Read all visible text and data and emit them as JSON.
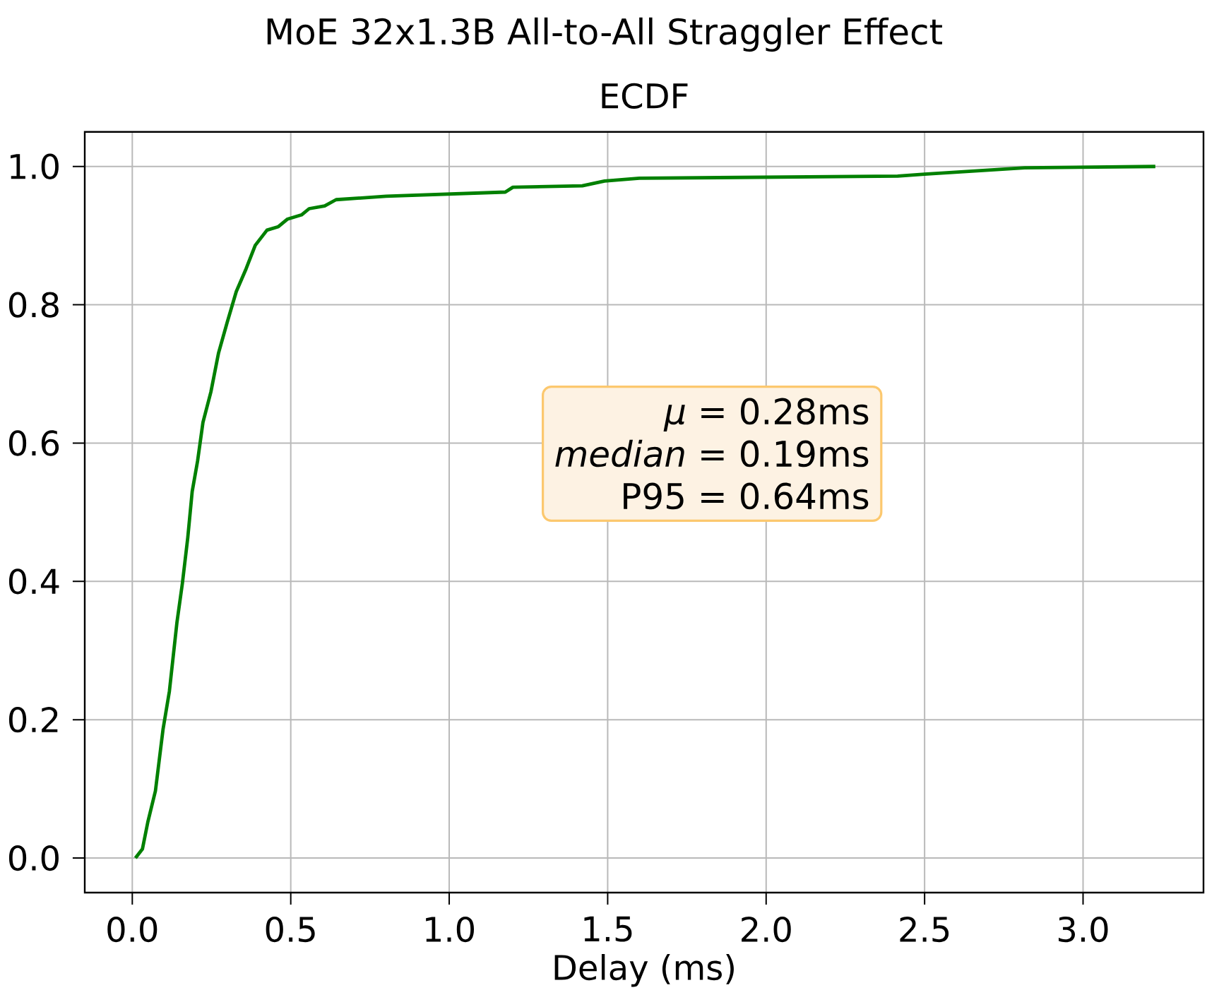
{
  "chart_data": {
    "type": "line",
    "title": "MoE 32x1.3B All-to-All Straggler Effect",
    "subtitle": "ECDF",
    "xlabel": "Delay (ms)",
    "x": [
      0.01,
      0.032,
      0.049,
      0.073,
      0.097,
      0.117,
      0.141,
      0.158,
      0.175,
      0.189,
      0.206,
      0.223,
      0.248,
      0.272,
      0.299,
      0.328,
      0.359,
      0.388,
      0.425,
      0.461,
      0.49,
      0.534,
      0.558,
      0.607,
      0.643,
      0.801,
      1.177,
      1.201,
      1.42,
      1.49,
      1.6,
      2.415,
      2.5,
      2.816,
      3.228
    ],
    "values": [
      0.0,
      0.013,
      0.052,
      0.097,
      0.186,
      0.241,
      0.341,
      0.397,
      0.463,
      0.53,
      0.574,
      0.63,
      0.674,
      0.73,
      0.774,
      0.819,
      0.852,
      0.886,
      0.908,
      0.913,
      0.924,
      0.93,
      0.939,
      0.943,
      0.952,
      0.957,
      0.963,
      0.97,
      0.972,
      0.979,
      0.983,
      0.986,
      0.989,
      0.998,
      1.0
    ],
    "color": "#008000",
    "xlim": [
      -0.15,
      3.38
    ],
    "ylim": [
      -0.05,
      1.05
    ],
    "xticks": [
      {
        "value": 0,
        "label": "0.0"
      },
      0.5,
      {
        "value": 1,
        "label": "1.0"
      },
      1.5,
      {
        "value": 2,
        "label": "2.0"
      },
      2.5,
      {
        "value": 3,
        "label": "3.0"
      }
    ],
    "yticks": [
      {
        "value": 0,
        "label": "0.0"
      },
      0.2,
      0.4,
      0.6,
      0.8,
      {
        "value": 1,
        "label": "1.0"
      }
    ],
    "grid": true,
    "annotations": [
      "*μ* = 0.28ms",
      "*median* = 0.19ms",
      "P95 = 0.64ms"
    ]
  }
}
